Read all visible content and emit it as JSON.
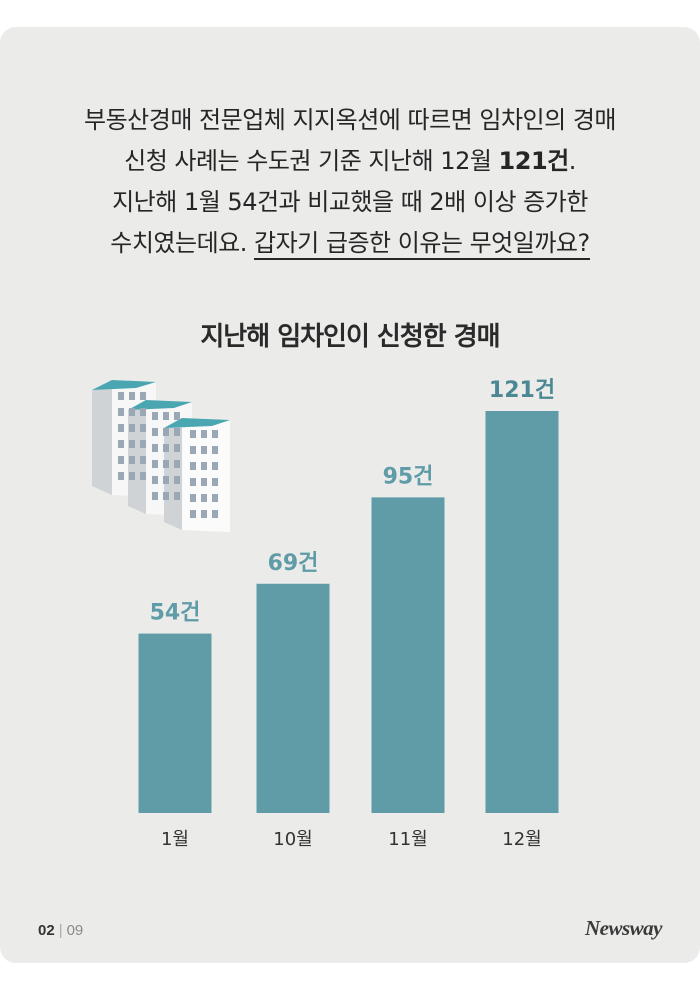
{
  "intro": {
    "line1": "부동산경매 전문업체 지지옥션에 따르면 임차인의 경매",
    "line2_pre": "신청 사례는 수도권 기준 지난해 12월 ",
    "line2_bold": "121건",
    "line2_post": ".",
    "line3": "지난해 1월 54건과 비교했을 때 2배 이상 증가한",
    "line4_pre": "수치였는데요. ",
    "line4_underlined": "갑자기 급증한 이유는 무엇일까요?"
  },
  "chart_data": {
    "type": "bar",
    "title": "지난해 임차인이 신청한 경매",
    "categories": [
      "1월",
      "10월",
      "11월",
      "12월"
    ],
    "values": [
      54,
      69,
      95,
      121
    ],
    "value_labels": [
      "54건",
      "69건",
      "95건",
      "121건"
    ],
    "ylim": [
      0,
      121
    ],
    "grid": false,
    "bar_color": "#5f9ca8",
    "label_color_scheme": "last label darker",
    "xlabel": "",
    "ylabel": ""
  },
  "decoration": {
    "icon": "apartment-buildings-icon"
  },
  "footer": {
    "page": "02",
    "separator": "|",
    "total": "09",
    "logo": "Newsway"
  }
}
